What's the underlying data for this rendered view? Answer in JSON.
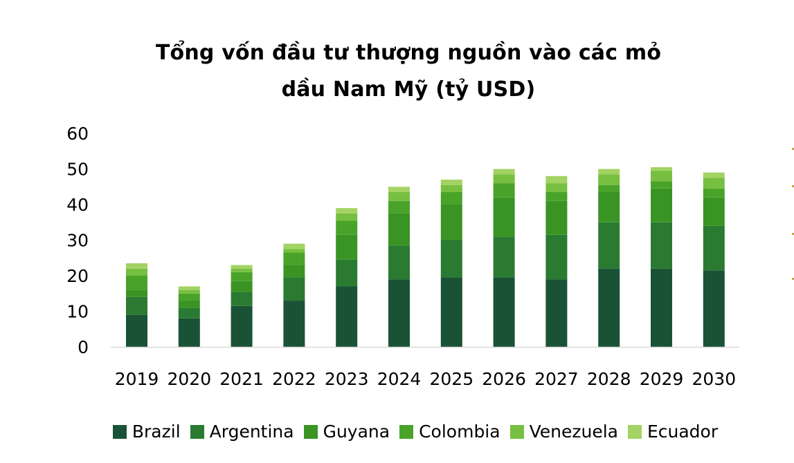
{
  "chart_data": {
    "type": "bar",
    "stacked": true,
    "title": [
      "Tổng vốn đầu tư thượng nguồn vào các mỏ",
      "dầu Nam Mỹ (tỷ USD)"
    ],
    "categories": [
      "2019",
      "2020",
      "2021",
      "2022",
      "2023",
      "2024",
      "2025",
      "2026",
      "2027",
      "2028",
      "2029",
      "2030"
    ],
    "yticks": [
      "0",
      "10",
      "20",
      "30",
      "40",
      "50",
      "60"
    ],
    "ylim": [
      0,
      60
    ],
    "grid": false,
    "legend_position": "bottom",
    "series": [
      {
        "name": "Brazil",
        "color": "#1a5235",
        "values": [
          9,
          8,
          11.5,
          13,
          17,
          19,
          19.5,
          19.5,
          19,
          22,
          22,
          21.5
        ]
      },
      {
        "name": "Argentina",
        "color": "#2a7a32",
        "values": [
          5,
          3,
          4,
          6.5,
          7.5,
          9.5,
          10.5,
          11.5,
          12.5,
          13,
          13,
          12.5
        ]
      },
      {
        "name": "Guyana",
        "color": "#3a9424",
        "values": [
          2,
          2,
          3,
          3.5,
          7,
          9,
          10,
          11,
          9.5,
          8.5,
          9.5,
          8
        ]
      },
      {
        "name": "Colombia",
        "color": "#4aa329",
        "values": [
          4,
          2,
          2.5,
          3.5,
          4,
          3.5,
          3.5,
          4,
          2.5,
          2,
          2,
          2.5
        ]
      },
      {
        "name": "Venezuela",
        "color": "#77bf40",
        "values": [
          2,
          1,
          1,
          1,
          2,
          2.5,
          2,
          2.5,
          2.5,
          3,
          3,
          3
        ]
      },
      {
        "name": "Ecuador",
        "color": "#a3d364",
        "values": [
          1.5,
          1,
          1,
          1.5,
          1.5,
          1.5,
          1.5,
          1.5,
          2,
          1.5,
          1,
          1.5
        ]
      }
    ]
  }
}
